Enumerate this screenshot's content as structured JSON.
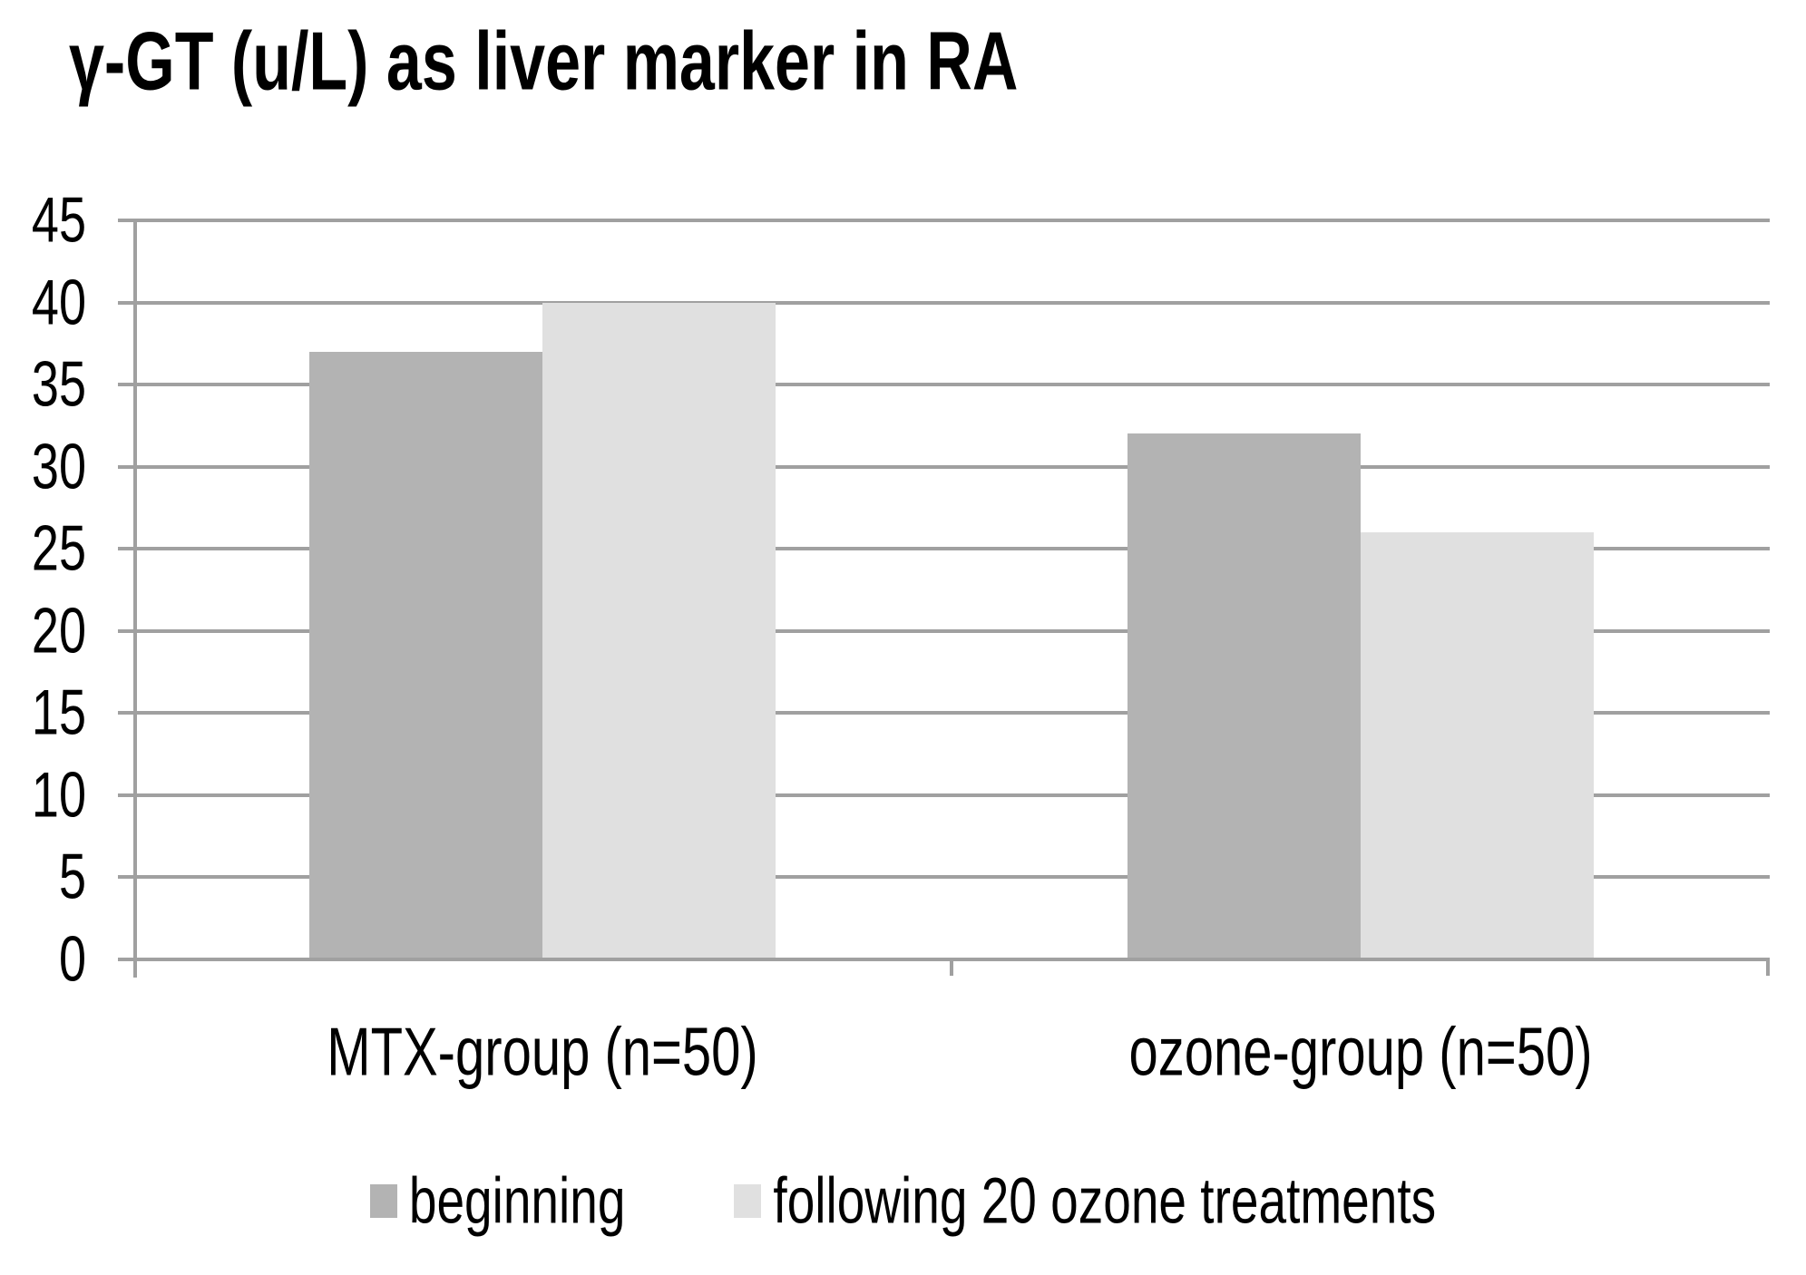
{
  "title": "γ-GT (u/L) as liver marker in RA",
  "colors": {
    "series_beginning": "#b3b3b3",
    "series_following": "#e0e0e0",
    "gridline": "#a0a0a0",
    "text": "#000000",
    "background": "#ffffff"
  },
  "chart_data": {
    "type": "bar",
    "title": "γ-GT (u/L) as liver marker in RA",
    "categories": [
      "MTX-group (n=50)",
      "ozone-group (n=50)"
    ],
    "series": [
      {
        "name": "beginning",
        "color": "#b3b3b3",
        "values": [
          37,
          32
        ]
      },
      {
        "name": "following 20 ozone treatments",
        "color": "#e0e0e0",
        "values": [
          40,
          26
        ]
      }
    ],
    "xlabel": "",
    "ylabel": "",
    "ylim": [
      0,
      45
    ],
    "ytick_step": 5,
    "yticks": [
      0,
      5,
      10,
      15,
      20,
      25,
      30,
      35,
      40,
      45
    ],
    "grid": true,
    "legend_position": "bottom"
  }
}
